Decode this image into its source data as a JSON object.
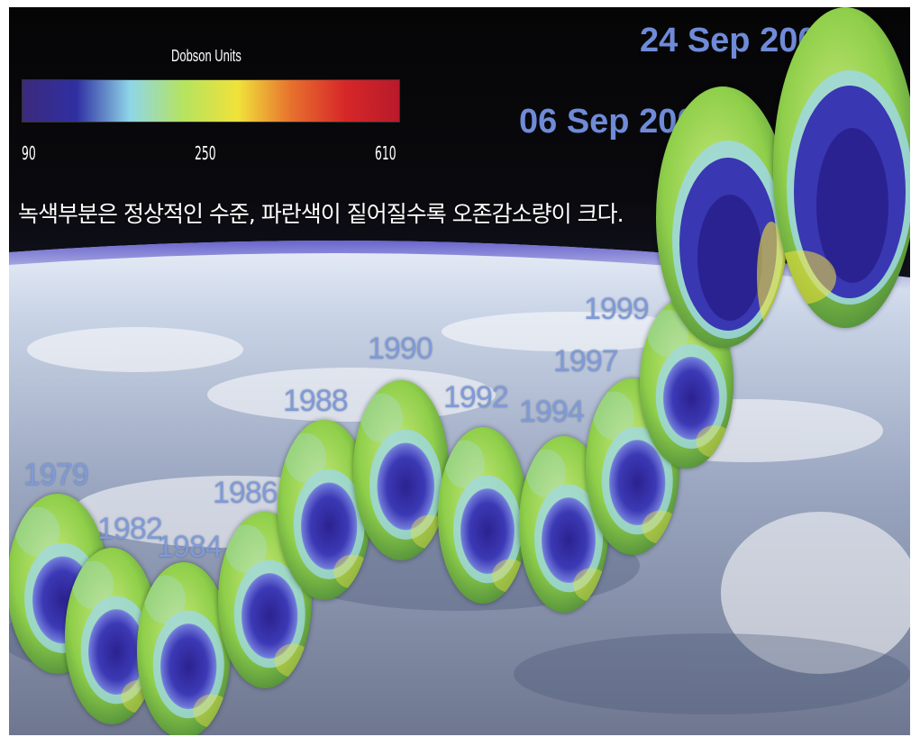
{
  "legend": {
    "title": "Dobson Units",
    "ticks": [
      "90",
      "250",
      "610"
    ],
    "colors": [
      "#3c2a7c",
      "#2f2fa2",
      "#8fd6e8",
      "#b6e35e",
      "#f0e23a",
      "#e7702e",
      "#d62728",
      "#b81a2b"
    ]
  },
  "caption": "녹색부분은 정상적인 수준, 파란색이 짙어질수록 오존감소량이 크다.",
  "labels": {
    "date_2003": "24 Sep 2003",
    "date_2000": "06 Sep 2000",
    "y1979": "1979",
    "y1982": "1982",
    "y1984": "1984",
    "y1986": "1986",
    "y1988": "1988",
    "y1990": "1990",
    "y1992": "1992",
    "y1994": "1994",
    "y1997": "1997",
    "y1999": "1999"
  },
  "colors": {
    "globe_green": "#8fd04a",
    "globe_blue": "#3a33a8",
    "year_text": "#7f9ad8"
  }
}
